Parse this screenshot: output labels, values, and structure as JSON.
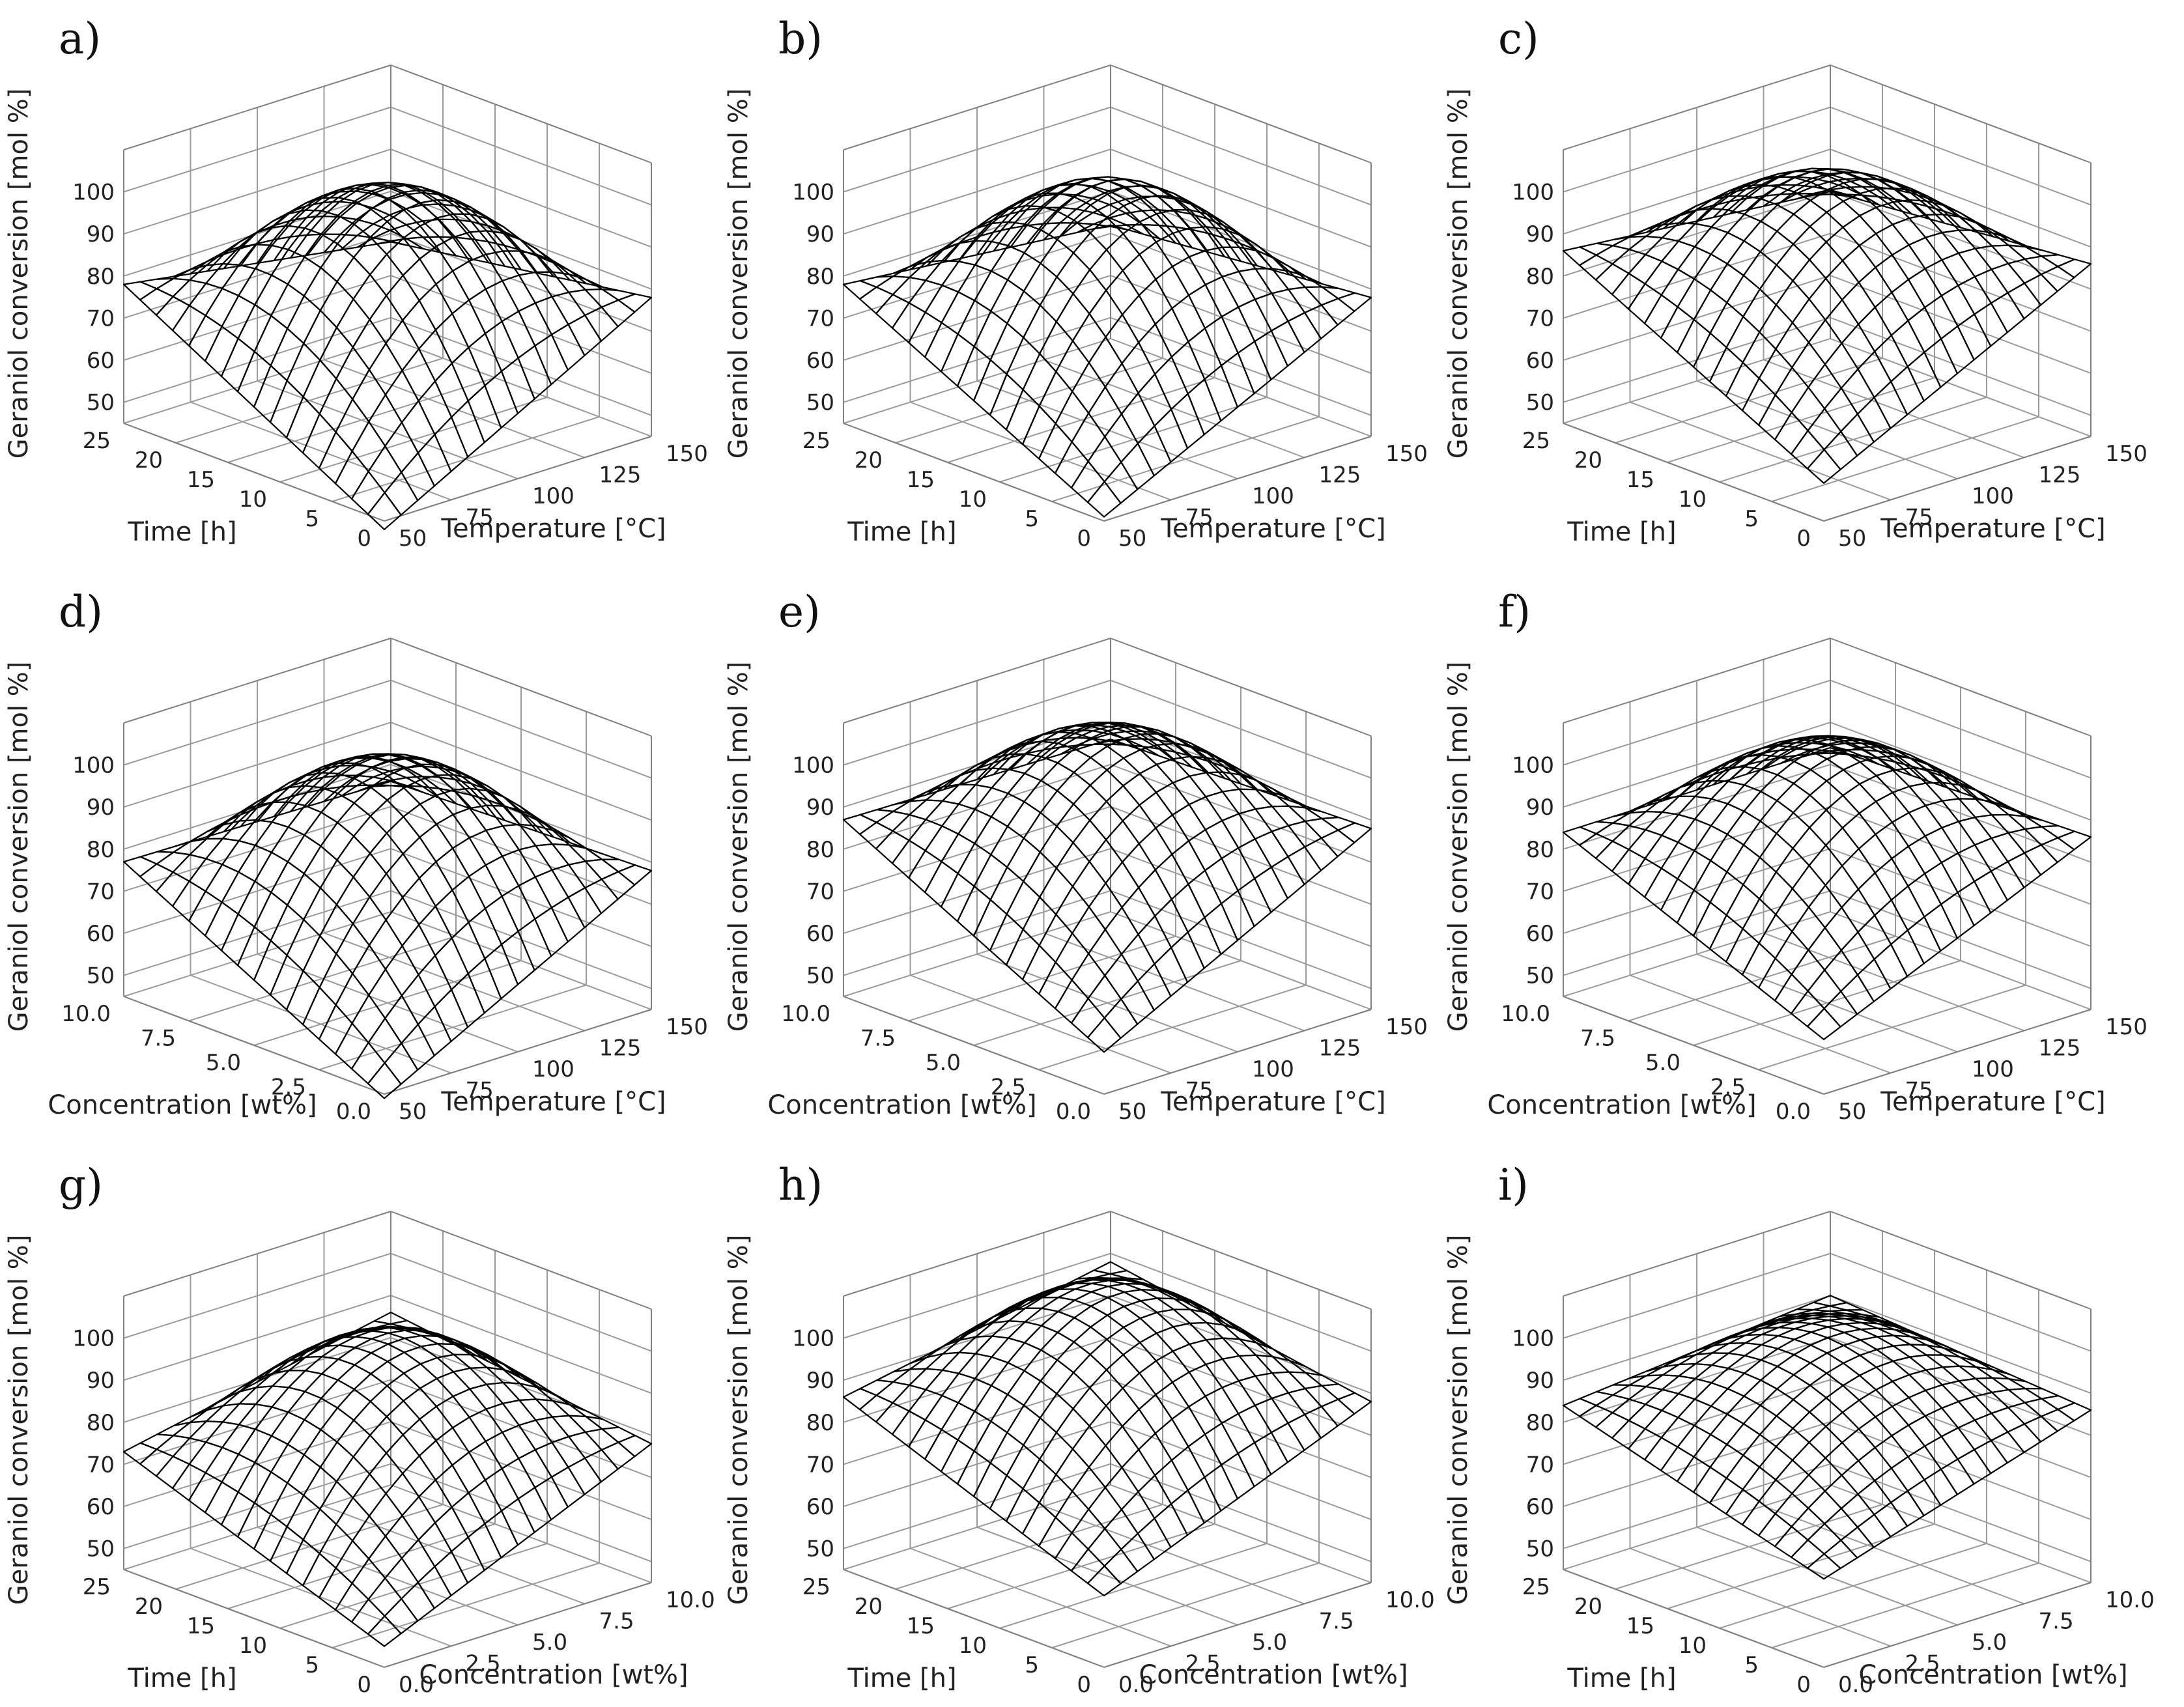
{
  "chart_data": [
    {
      "type": "surface",
      "panel_label": "a)",
      "xlabel": "Time [h]",
      "ylabel": "Temperature [°C]",
      "zlabel": "Geraniol conversion [mol %]",
      "x_ticks": [
        "0",
        "5",
        "10",
        "15",
        "20",
        "25"
      ],
      "y_ticks": [
        "50",
        "75",
        "100",
        "125",
        "150"
      ],
      "z_ticks": [
        "50",
        "60",
        "70",
        "80",
        "90",
        "100"
      ],
      "x_range": [
        0,
        25
      ],
      "y_range": [
        50,
        150
      ],
      "z_range": [
        45,
        110
      ],
      "surface_color": "#a4c83a",
      "corner_values": {
        "x_min_y_min": 43,
        "x_max_y_min": 78,
        "x_min_y_max": 78,
        "x_max_y_max": 68
      },
      "peak_value": 100
    },
    {
      "type": "surface",
      "panel_label": "b)",
      "xlabel": "Time [h]",
      "ylabel": "Temperature [°C]",
      "zlabel": "Geraniol conversion [mol %]",
      "x_ticks": [
        "0",
        "5",
        "10",
        "15",
        "20",
        "25"
      ],
      "y_ticks": [
        "50",
        "75",
        "100",
        "125",
        "150"
      ],
      "z_ticks": [
        "50",
        "60",
        "70",
        "80",
        "90",
        "100"
      ],
      "x_range": [
        0,
        25
      ],
      "y_range": [
        50,
        150
      ],
      "z_range": [
        45,
        110
      ],
      "surface_color": "#a4c83a",
      "corner_values": {
        "x_min_y_min": 46,
        "x_max_y_min": 78,
        "x_min_y_max": 78,
        "x_max_y_max": 72
      },
      "peak_value": 101
    },
    {
      "type": "surface",
      "panel_label": "c)",
      "xlabel": "Time [h]",
      "ylabel": "Temperature [°C]",
      "zlabel": "Geraniol conversion [mol %]",
      "x_ticks": [
        "0",
        "5",
        "10",
        "15",
        "20",
        "25"
      ],
      "y_ticks": [
        "50",
        "75",
        "100",
        "125",
        "150"
      ],
      "z_ticks": [
        "50",
        "60",
        "70",
        "80",
        "90",
        "100"
      ],
      "x_range": [
        0,
        25
      ],
      "y_range": [
        50,
        150
      ],
      "z_range": [
        45,
        110
      ],
      "surface_color": "#a4c83a",
      "corner_values": {
        "x_min_y_min": 54,
        "x_max_y_min": 86,
        "x_min_y_max": 86,
        "x_max_y_max": 80
      },
      "peak_value": 102
    },
    {
      "type": "surface",
      "panel_label": "d)",
      "xlabel": "Concentration [wt%]",
      "ylabel": "Temperature [°C]",
      "zlabel": "Geraniol conversion [mol %]",
      "x_ticks": [
        "0.0",
        "2.5",
        "5.0",
        "7.5",
        "10.0"
      ],
      "y_ticks": [
        "50",
        "75",
        "100",
        "125",
        "150"
      ],
      "z_ticks": [
        "50",
        "60",
        "70",
        "80",
        "90",
        "100"
      ],
      "x_range": [
        0,
        10
      ],
      "y_range": [
        50,
        150
      ],
      "z_range": [
        45,
        110
      ],
      "surface_color": "#a4c83a",
      "corner_values": {
        "x_min_y_min": 44,
        "x_max_y_min": 77,
        "x_min_y_max": 78,
        "x_max_y_max": 76
      },
      "peak_value": 99
    },
    {
      "type": "surface",
      "panel_label": "e)",
      "xlabel": "Concentration [wt%]",
      "ylabel": "Temperature [°C]",
      "zlabel": "Geraniol conversion [mol %]",
      "x_ticks": [
        "0.0",
        "2.5",
        "5.0",
        "7.5",
        "10.0"
      ],
      "y_ticks": [
        "50",
        "75",
        "100",
        "125",
        "150"
      ],
      "z_ticks": [
        "50",
        "60",
        "70",
        "80",
        "90",
        "100"
      ],
      "x_range": [
        0,
        10
      ],
      "y_range": [
        50,
        150
      ],
      "z_range": [
        45,
        110
      ],
      "surface_color": "#a4c83a",
      "corner_values": {
        "x_min_y_min": 55,
        "x_max_y_min": 87,
        "x_min_y_max": 88,
        "x_max_y_max": 86
      },
      "peak_value": 106
    },
    {
      "type": "surface",
      "panel_label": "f)",
      "xlabel": "Concentration [wt%]",
      "ylabel": "Temperature [°C]",
      "zlabel": "Geraniol conversion [mol %]",
      "x_ticks": [
        "0.0",
        "2.5",
        "5.0",
        "7.5",
        "10.0"
      ],
      "y_ticks": [
        "50",
        "75",
        "100",
        "125",
        "150"
      ],
      "z_ticks": [
        "50",
        "60",
        "70",
        "80",
        "90",
        "100"
      ],
      "x_range": [
        0,
        10
      ],
      "y_range": [
        50,
        150
      ],
      "z_range": [
        45,
        110
      ],
      "surface_color": "#8fae32",
      "corner_values": {
        "x_min_y_min": 58,
        "x_max_y_min": 84,
        "x_min_y_max": 86,
        "x_max_y_max": 84
      },
      "peak_value": 103
    },
    {
      "type": "surface",
      "panel_label": "g)",
      "xlabel": "Time [h]",
      "ylabel": "Concentration [wt%]",
      "zlabel": "Geraniol conversion [mol %]",
      "x_ticks": [
        "0",
        "5",
        "10",
        "15",
        "20",
        "25"
      ],
      "y_ticks": [
        "0.0",
        "2.5",
        "5.0",
        "7.5",
        "10.0"
      ],
      "z_ticks": [
        "50",
        "60",
        "70",
        "80",
        "90",
        "100"
      ],
      "x_range": [
        0,
        25
      ],
      "y_range": [
        0,
        10
      ],
      "z_range": [
        45,
        110
      ],
      "surface_color": "#a4c83a",
      "corner_values": {
        "x_min_y_min": 50,
        "x_max_y_min": 73,
        "x_min_y_max": 78,
        "x_max_y_max": 86
      },
      "peak_value": 96
    },
    {
      "type": "surface",
      "panel_label": "h)",
      "xlabel": "Time [h]",
      "ylabel": "Concentration [wt%]",
      "zlabel": "Geraniol conversion [mol %]",
      "x_ticks": [
        "0",
        "5",
        "10",
        "15",
        "20",
        "25"
      ],
      "y_ticks": [
        "0.0",
        "2.5",
        "5.0",
        "7.5",
        "10.0"
      ],
      "z_ticks": [
        "50",
        "60",
        "70",
        "80",
        "90",
        "100"
      ],
      "x_range": [
        0,
        25
      ],
      "y_range": [
        0,
        10
      ],
      "z_range": [
        45,
        110
      ],
      "surface_color": "#a4c83a",
      "corner_values": {
        "x_min_y_min": 62,
        "x_max_y_min": 86,
        "x_min_y_max": 88,
        "x_max_y_max": 98
      },
      "peak_value": 107
    },
    {
      "type": "surface",
      "panel_label": "i)",
      "xlabel": "Time [h]",
      "ylabel": "Concentration [wt%]",
      "zlabel": "Geraniol conversion [mol %]",
      "x_ticks": [
        "0",
        "5",
        "10",
        "15",
        "20",
        "25"
      ],
      "y_ticks": [
        "0.0",
        "2.5",
        "5.0",
        "7.5",
        "10.0"
      ],
      "z_ticks": [
        "50",
        "60",
        "70",
        "80",
        "90",
        "100"
      ],
      "x_range": [
        0,
        25
      ],
      "y_range": [
        0,
        10
      ],
      "z_range": [
        45,
        110
      ],
      "surface_color": "#a4c83a",
      "corner_values": {
        "x_min_y_min": 66,
        "x_max_y_min": 84,
        "x_min_y_max": 86,
        "x_max_y_max": 90
      },
      "peak_value": 98
    }
  ]
}
